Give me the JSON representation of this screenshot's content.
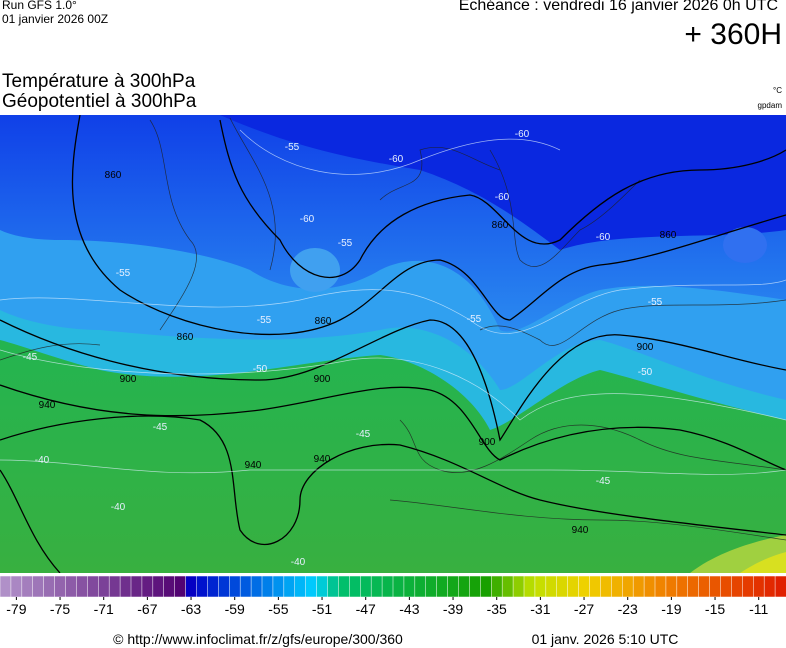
{
  "header": {
    "run": "Run GFS 1.0°",
    "run_date": "01 janvier 2026 00Z",
    "valid_time": "Echéance : vendredi 16 janvier 2026 0h UTC",
    "lead_time": "+ 360H"
  },
  "titles": [
    "Température à 300hPa",
    "Géopotentiel à 300hPa"
  ],
  "units": {
    "temperature": "°C",
    "geopotential": "gpdam"
  },
  "map": {
    "geopotential_labels": [
      860,
      860,
      860,
      860,
      860,
      900,
      900,
      900,
      900,
      940,
      940,
      940,
      940
    ],
    "temperature_labels": [
      -60,
      -60,
      -60,
      -60,
      -60,
      -55,
      -55,
      -55,
      -55,
      -55,
      -55,
      -50,
      -50,
      -45,
      -45,
      -45,
      -45,
      -40,
      -40,
      -40
    ]
  },
  "colorbar": {
    "range": [
      -80,
      -9
    ],
    "ticks": [
      -79,
      -75,
      -71,
      -67,
      -63,
      -59,
      -55,
      -51,
      -47,
      -43,
      -39,
      -35,
      -31,
      -27,
      -23,
      -19,
      -15,
      -11
    ]
  },
  "footer": {
    "source": "© http://www.infoclimat.fr/z/gfs/europe/300/360",
    "generated": "01 janv. 2026  5:10 UTC"
  }
}
